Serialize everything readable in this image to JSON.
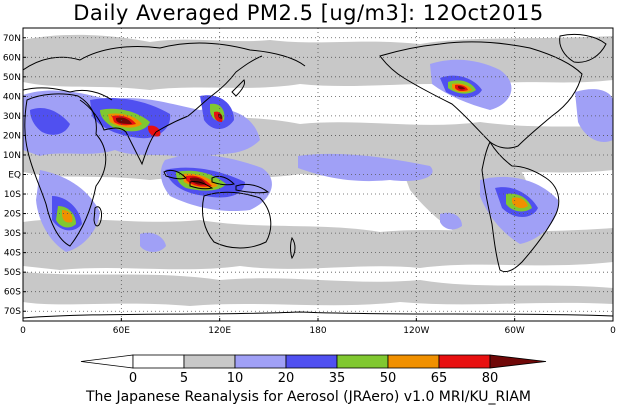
{
  "title": "Daily Averaged PM2.5 [ug/m3]: 12Oct2015",
  "footer": "The Japanese Reanalysis for Aerosol (JRAero) v1.0 MRI/KU_RIAM",
  "map": {
    "projection": "cylindrical",
    "lon_range": [
      0,
      360
    ],
    "lat_range": [
      -75,
      75
    ],
    "gridlines": "dotted",
    "lat_ticks": [
      "70N",
      "60N",
      "50N",
      "40N",
      "30N",
      "20N",
      "10N",
      "EQ",
      "10S",
      "20S",
      "30S",
      "40S",
      "50S",
      "60S",
      "70S"
    ],
    "lat_values": [
      70,
      60,
      50,
      40,
      30,
      20,
      10,
      0,
      -10,
      -20,
      -30,
      -40,
      -50,
      -60,
      -70
    ],
    "lon_ticks": [
      "0",
      "60E",
      "120E",
      "180",
      "120W",
      "60W",
      "0"
    ],
    "lon_values": [
      0,
      60,
      120,
      180,
      240,
      300,
      360
    ]
  },
  "colorbar": {
    "levels": [
      "0",
      "5",
      "10",
      "20",
      "35",
      "50",
      "65",
      "80"
    ],
    "colors": [
      "#ffffff",
      "#c8c8c8",
      "#a0a0f6",
      "#5050f0",
      "#80c830",
      "#f09000",
      "#e81010",
      "#700808"
    ],
    "extend": "both"
  }
}
